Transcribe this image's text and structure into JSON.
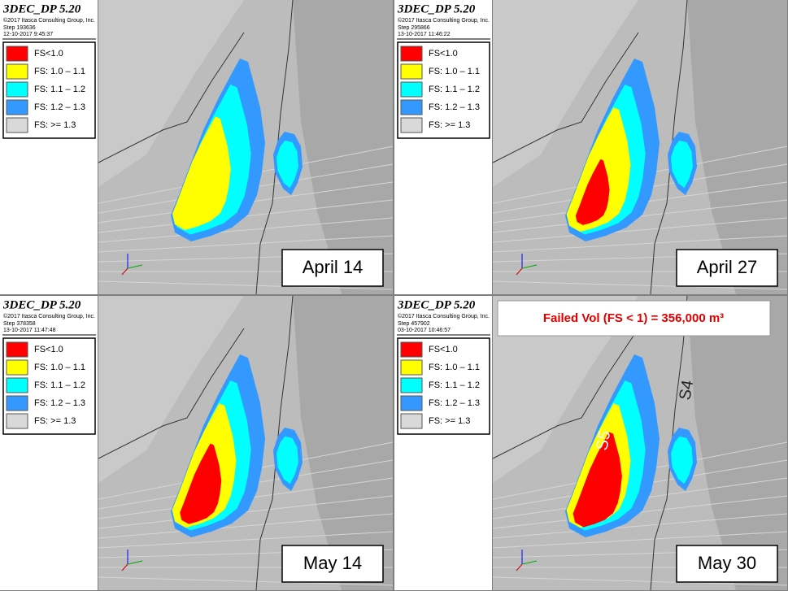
{
  "header": {
    "title": "3DEC_DP 5.20",
    "copyright": "©2017 Itasca Consulting Group, Inc."
  },
  "legend": [
    {
      "label": "FS<1.0",
      "color": "#ff0000"
    },
    {
      "label": "FS: 1.0 – 1.1",
      "color": "#ffff00"
    },
    {
      "label": "FS: 1.1 – 1.2",
      "color": "#00ffff"
    },
    {
      "label": "FS: 1.2 – 1.3",
      "color": "#3399ff"
    },
    {
      "label": "FS:  >= 1.3",
      "color": "#d9d9d9"
    }
  ],
  "panels": [
    {
      "step": "Step 193636",
      "date": "12-10-2017 9:45:37",
      "label": "April 14"
    },
    {
      "step": "Step 295866",
      "date": "13-10-2017 11:46:22",
      "label": "April 27"
    },
    {
      "step": "Step 378358",
      "date": "13-10-2017 11:47:48",
      "label": "May 14"
    },
    {
      "step": "Step 457902",
      "date": "03-10-2017 10:46:57",
      "label": "May 30"
    }
  ],
  "annotation": "Failed Vol (FS < 1) = 356,000 m³",
  "sector_labels": [
    "S5",
    "S4"
  ]
}
